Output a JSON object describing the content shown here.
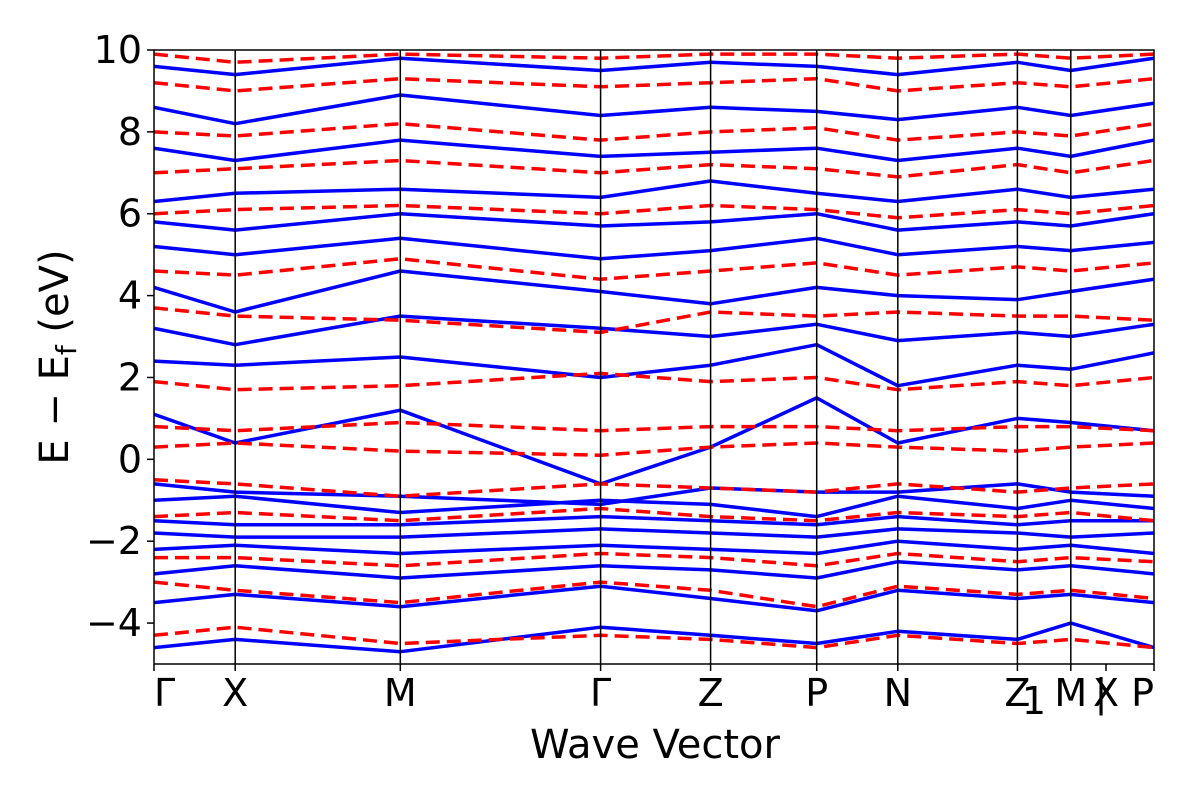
{
  "chart_data": {
    "type": "line",
    "title": "",
    "xlabel": "Wave Vector",
    "ylabel": "E − E",
    "ylabel_sub": "f",
    "ylabel_unit": "(eV)",
    "ylim": [
      -5,
      10
    ],
    "yticks": [
      -4,
      -2,
      0,
      2,
      4,
      6,
      8,
      10
    ],
    "ytick_labels": [
      "−4",
      "−2",
      "0",
      "2",
      "4",
      "6",
      "8",
      "10"
    ],
    "grid": false,
    "legend": "none",
    "high_symmetry_points": [
      {
        "label": "Γ",
        "x": 0.0
      },
      {
        "label": "X",
        "x": 0.0812
      },
      {
        "label": "M",
        "x": 0.2463
      },
      {
        "label": "Γ",
        "x": 0.4466
      },
      {
        "label": "Z",
        "x": 0.5566
      },
      {
        "label": "P",
        "x": 0.6627
      },
      {
        "label": "N",
        "x": 0.7438
      },
      {
        "label": "Z",
        "x": 0.8634
      },
      {
        "label": "M",
        "x": 0.9168
      },
      {
        "label": "|",
        "x": 0.947
      },
      {
        "label": "X",
        "x": 0.952
      },
      {
        "label": "P",
        "x": 1.0
      }
    ],
    "extra_tick_text": {
      "text": "1",
      "x": 0.88
    },
    "separator_lines_x": [
      0.0812,
      0.2463,
      0.4466,
      0.5566,
      0.6627,
      0.7438,
      0.8634,
      0.9168
    ],
    "series": [
      {
        "style": "solid",
        "color": "#0000ff",
        "bands": [
          {
            "x": [
              0,
              0.0812,
              0.2463,
              0.4466,
              0.5566,
              0.6627,
              0.7438,
              0.8634,
              0.9168,
              1.0
            ],
            "y": [
              -4.6,
              -4.4,
              -4.7,
              -4.1,
              -4.3,
              -4.5,
              -4.2,
              -4.4,
              -4.0,
              -4.6
            ]
          },
          {
            "x": [
              0,
              0.0812,
              0.2463,
              0.4466,
              0.5566,
              0.6627,
              0.7438,
              0.8634,
              0.9168,
              1.0
            ],
            "y": [
              -3.5,
              -3.3,
              -3.6,
              -3.1,
              -3.4,
              -3.7,
              -3.2,
              -3.4,
              -3.3,
              -3.5
            ]
          },
          {
            "x": [
              0,
              0.0812,
              0.2463,
              0.4466,
              0.5566,
              0.6627,
              0.7438,
              0.8634,
              0.9168,
              1.0
            ],
            "y": [
              -2.8,
              -2.6,
              -2.9,
              -2.6,
              -2.7,
              -2.9,
              -2.5,
              -2.7,
              -2.6,
              -2.8
            ]
          },
          {
            "x": [
              0,
              0.0812,
              0.2463,
              0.4466,
              0.5566,
              0.6627,
              0.7438,
              0.8634,
              0.9168,
              1.0
            ],
            "y": [
              -2.2,
              -2.1,
              -2.3,
              -2.1,
              -2.2,
              -2.3,
              -2.0,
              -2.2,
              -2.1,
              -2.3
            ]
          },
          {
            "x": [
              0,
              0.0812,
              0.2463,
              0.4466,
              0.5566,
              0.6627,
              0.7438,
              0.8634,
              0.9168,
              1.0
            ],
            "y": [
              -1.8,
              -1.9,
              -1.9,
              -1.7,
              -1.8,
              -1.9,
              -1.7,
              -1.8,
              -1.9,
              -1.8
            ]
          },
          {
            "x": [
              0,
              0.0812,
              0.2463,
              0.4466,
              0.5566,
              0.6627,
              0.7438,
              0.8634,
              0.9168,
              1.0
            ],
            "y": [
              -1.5,
              -1.6,
              -1.6,
              -1.4,
              -1.5,
              -1.6,
              -1.4,
              -1.6,
              -1.5,
              -1.5
            ]
          },
          {
            "x": [
              0,
              0.0812,
              0.2463,
              0.4466,
              0.5566,
              0.6627,
              0.7438,
              0.8634,
              0.9168,
              1.0
            ],
            "y": [
              -1.0,
              -0.9,
              -1.3,
              -1.0,
              -1.1,
              -1.4,
              -0.9,
              -1.2,
              -1.0,
              -1.2
            ]
          },
          {
            "x": [
              0,
              0.0812,
              0.2463,
              0.4466,
              0.5566,
              0.6627,
              0.7438,
              0.8634,
              0.9168,
              1.0
            ],
            "y": [
              -0.6,
              -0.8,
              -0.9,
              -1.1,
              -0.7,
              -0.8,
              -0.8,
              -0.6,
              -0.8,
              -0.9
            ]
          },
          {
            "x": [
              0,
              0.0812,
              0.2463,
              0.4466,
              0.5566,
              0.6627,
              0.7438,
              0.8634,
              0.9168,
              1.0
            ],
            "y": [
              1.1,
              0.4,
              1.2,
              -0.6,
              0.3,
              1.5,
              0.4,
              1.0,
              0.9,
              0.7
            ]
          },
          {
            "x": [
              0,
              0.0812,
              0.2463,
              0.4466,
              0.5566,
              0.6627,
              0.7438,
              0.8634,
              0.9168,
              1.0
            ],
            "y": [
              2.4,
              2.3,
              2.5,
              2.0,
              2.3,
              2.8,
              1.8,
              2.3,
              2.2,
              2.6
            ]
          },
          {
            "x": [
              0,
              0.0812,
              0.2463,
              0.4466,
              0.5566,
              0.6627,
              0.7438,
              0.8634,
              0.9168,
              1.0
            ],
            "y": [
              3.2,
              2.8,
              3.5,
              3.2,
              3.0,
              3.3,
              2.9,
              3.1,
              3.0,
              3.3
            ]
          },
          {
            "x": [
              0,
              0.0812,
              0.2463,
              0.4466,
              0.5566,
              0.6627,
              0.7438,
              0.8634,
              0.9168,
              1.0
            ],
            "y": [
              4.2,
              3.6,
              4.6,
              4.1,
              3.8,
              4.2,
              4.0,
              3.9,
              4.1,
              4.4
            ]
          },
          {
            "x": [
              0,
              0.0812,
              0.2463,
              0.4466,
              0.5566,
              0.6627,
              0.7438,
              0.8634,
              0.9168,
              1.0
            ],
            "y": [
              5.2,
              5.0,
              5.4,
              4.9,
              5.1,
              5.4,
              5.0,
              5.2,
              5.1,
              5.3
            ]
          },
          {
            "x": [
              0,
              0.0812,
              0.2463,
              0.4466,
              0.5566,
              0.6627,
              0.7438,
              0.8634,
              0.9168,
              1.0
            ],
            "y": [
              5.8,
              5.6,
              6.0,
              5.7,
              5.8,
              6.0,
              5.6,
              5.8,
              5.7,
              6.0
            ]
          },
          {
            "x": [
              0,
              0.0812,
              0.2463,
              0.4466,
              0.5566,
              0.6627,
              0.7438,
              0.8634,
              0.9168,
              1.0
            ],
            "y": [
              6.3,
              6.5,
              6.6,
              6.4,
              6.8,
              6.5,
              6.3,
              6.6,
              6.4,
              6.6
            ]
          },
          {
            "x": [
              0,
              0.0812,
              0.2463,
              0.4466,
              0.5566,
              0.6627,
              0.7438,
              0.8634,
              0.9168,
              1.0
            ],
            "y": [
              7.6,
              7.3,
              7.8,
              7.4,
              7.5,
              7.6,
              7.3,
              7.6,
              7.4,
              7.8
            ]
          },
          {
            "x": [
              0,
              0.0812,
              0.2463,
              0.4466,
              0.5566,
              0.6627,
              0.7438,
              0.8634,
              0.9168,
              1.0
            ],
            "y": [
              8.6,
              8.2,
              8.9,
              8.4,
              8.6,
              8.5,
              8.3,
              8.6,
              8.4,
              8.7
            ]
          },
          {
            "x": [
              0,
              0.0812,
              0.2463,
              0.4466,
              0.5566,
              0.6627,
              0.7438,
              0.8634,
              0.9168,
              1.0
            ],
            "y": [
              9.6,
              9.4,
              9.8,
              9.5,
              9.7,
              9.6,
              9.4,
              9.7,
              9.5,
              9.8
            ]
          }
        ]
      },
      {
        "style": "dashed",
        "color": "#ff0000",
        "bands": [
          {
            "x": [
              0,
              0.0812,
              0.2463,
              0.4466,
              0.5566,
              0.6627,
              0.7438,
              0.8634,
              0.9168,
              1.0
            ],
            "y": [
              -4.3,
              -4.1,
              -4.5,
              -4.3,
              -4.4,
              -4.6,
              -4.3,
              -4.5,
              -4.4,
              -4.6
            ]
          },
          {
            "x": [
              0,
              0.0812,
              0.2463,
              0.4466,
              0.5566,
              0.6627,
              0.7438,
              0.8634,
              0.9168,
              1.0
            ],
            "y": [
              -3.0,
              -3.2,
              -3.5,
              -3.0,
              -3.2,
              -3.6,
              -3.1,
              -3.3,
              -3.2,
              -3.4
            ]
          },
          {
            "x": [
              0,
              0.0812,
              0.2463,
              0.4466,
              0.5566,
              0.6627,
              0.7438,
              0.8634,
              0.9168,
              1.0
            ],
            "y": [
              -2.4,
              -2.4,
              -2.6,
              -2.3,
              -2.4,
              -2.6,
              -2.3,
              -2.5,
              -2.4,
              -2.5
            ]
          },
          {
            "x": [
              0,
              0.0812,
              0.2463,
              0.4466,
              0.5566,
              0.6627,
              0.7438,
              0.8634,
              0.9168,
              1.0
            ],
            "y": [
              -1.4,
              -1.3,
              -1.5,
              -1.2,
              -1.4,
              -1.5,
              -1.3,
              -1.4,
              -1.3,
              -1.5
            ]
          },
          {
            "x": [
              0,
              0.0812,
              0.2463,
              0.4466,
              0.5566,
              0.6627,
              0.7438,
              0.8634,
              0.9168,
              1.0
            ],
            "y": [
              -0.5,
              -0.6,
              -0.9,
              -0.6,
              -0.7,
              -0.8,
              -0.6,
              -0.8,
              -0.7,
              -0.6
            ]
          },
          {
            "x": [
              0,
              0.0812,
              0.2463,
              0.4466,
              0.5566,
              0.6627,
              0.7438,
              0.8634,
              0.9168,
              1.0
            ],
            "y": [
              0.3,
              0.4,
              0.2,
              0.1,
              0.3,
              0.4,
              0.3,
              0.2,
              0.3,
              0.4
            ]
          },
          {
            "x": [
              0,
              0.0812,
              0.2463,
              0.4466,
              0.5566,
              0.6627,
              0.7438,
              0.8634,
              0.9168,
              1.0
            ],
            "y": [
              0.8,
              0.7,
              0.9,
              0.7,
              0.8,
              0.8,
              0.7,
              0.8,
              0.8,
              0.7
            ]
          },
          {
            "x": [
              0,
              0.0812,
              0.2463,
              0.4466,
              0.5566,
              0.6627,
              0.7438,
              0.8634,
              0.9168,
              1.0
            ],
            "y": [
              1.9,
              1.7,
              1.8,
              2.1,
              1.9,
              2.0,
              1.7,
              1.9,
              1.8,
              2.0
            ]
          },
          {
            "x": [
              0,
              0.0812,
              0.2463,
              0.4466,
              0.5566,
              0.6627,
              0.7438,
              0.8634,
              0.9168,
              1.0
            ],
            "y": [
              3.7,
              3.5,
              3.4,
              3.1,
              3.6,
              3.5,
              3.6,
              3.5,
              3.5,
              3.4
            ]
          },
          {
            "x": [
              0,
              0.0812,
              0.2463,
              0.4466,
              0.5566,
              0.6627,
              0.7438,
              0.8634,
              0.9168,
              1.0
            ],
            "y": [
              4.6,
              4.5,
              4.9,
              4.4,
              4.6,
              4.8,
              4.5,
              4.7,
              4.6,
              4.8
            ]
          },
          {
            "x": [
              0,
              0.0812,
              0.2463,
              0.4466,
              0.5566,
              0.6627,
              0.7438,
              0.8634,
              0.9168,
              1.0
            ],
            "y": [
              6.0,
              6.1,
              6.2,
              6.0,
              6.2,
              6.1,
              5.9,
              6.1,
              6.0,
              6.2
            ]
          },
          {
            "x": [
              0,
              0.0812,
              0.2463,
              0.4466,
              0.5566,
              0.6627,
              0.7438,
              0.8634,
              0.9168,
              1.0
            ],
            "y": [
              7.0,
              7.1,
              7.3,
              7.0,
              7.2,
              7.1,
              6.9,
              7.2,
              7.0,
              7.3
            ]
          },
          {
            "x": [
              0,
              0.0812,
              0.2463,
              0.4466,
              0.5566,
              0.6627,
              0.7438,
              0.8634,
              0.9168,
              1.0
            ],
            "y": [
              8.0,
              7.9,
              8.2,
              7.8,
              8.0,
              8.1,
              7.8,
              8.0,
              7.9,
              8.2
            ]
          },
          {
            "x": [
              0,
              0.0812,
              0.2463,
              0.4466,
              0.5566,
              0.6627,
              0.7438,
              0.8634,
              0.9168,
              1.0
            ],
            "y": [
              9.2,
              9.0,
              9.3,
              9.1,
              9.2,
              9.3,
              9.0,
              9.2,
              9.1,
              9.3
            ]
          },
          {
            "x": [
              0,
              0.0812,
              0.2463,
              0.4466,
              0.5566,
              0.6627,
              0.7438,
              0.8634,
              0.9168,
              1.0
            ],
            "y": [
              9.9,
              9.7,
              9.9,
              9.8,
              9.9,
              9.9,
              9.8,
              9.9,
              9.8,
              9.9
            ]
          }
        ]
      }
    ]
  }
}
